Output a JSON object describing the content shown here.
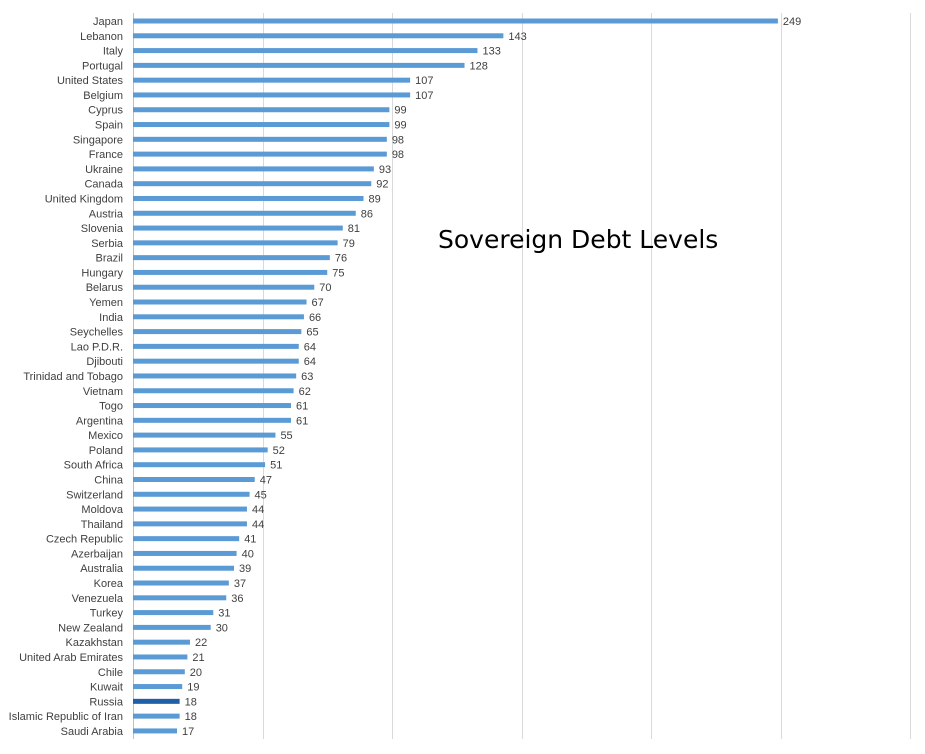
{
  "chart_data": {
    "type": "bar",
    "orientation": "horizontal",
    "title": "Sovereign Debt Levels",
    "xlim": [
      0,
      300
    ],
    "grid": true,
    "legend": "none",
    "bar_color": "#5B9BD5",
    "highlight_color": "#1F5FA8",
    "highlight_category": "Russia",
    "categories": [
      "Japan",
      "Lebanon",
      "Italy",
      "Portugal",
      "United States",
      "Belgium",
      "Cyprus",
      "Spain",
      "Singapore",
      "France",
      "Ukraine",
      "Canada",
      "United Kingdom",
      "Austria",
      "Slovenia",
      "Serbia",
      "Brazil",
      "Hungary",
      "Belarus",
      "Yemen",
      "India",
      "Seychelles",
      "Lao P.D.R.",
      "Djibouti",
      "Trinidad and Tobago",
      "Vietnam",
      "Togo",
      "Argentina",
      "Mexico",
      "Poland",
      "South Africa",
      "China",
      "Switzerland",
      "Moldova",
      "Thailand",
      "Czech Republic",
      "Azerbaijan",
      "Australia",
      "Korea",
      "Venezuela",
      "Turkey",
      "New Zealand",
      "Kazakhstan",
      "United Arab Emirates",
      "Chile",
      "Kuwait",
      "Russia",
      "Islamic Republic of Iran",
      "Saudi Arabia"
    ],
    "values": [
      249,
      143,
      133,
      128,
      107,
      107,
      99,
      99,
      98,
      98,
      93,
      92,
      89,
      86,
      81,
      79,
      76,
      75,
      70,
      67,
      66,
      65,
      64,
      64,
      63,
      62,
      61,
      61,
      55,
      52,
      51,
      47,
      45,
      44,
      44,
      41,
      40,
      39,
      37,
      36,
      31,
      30,
      22,
      21,
      20,
      19,
      18,
      18,
      17
    ]
  }
}
